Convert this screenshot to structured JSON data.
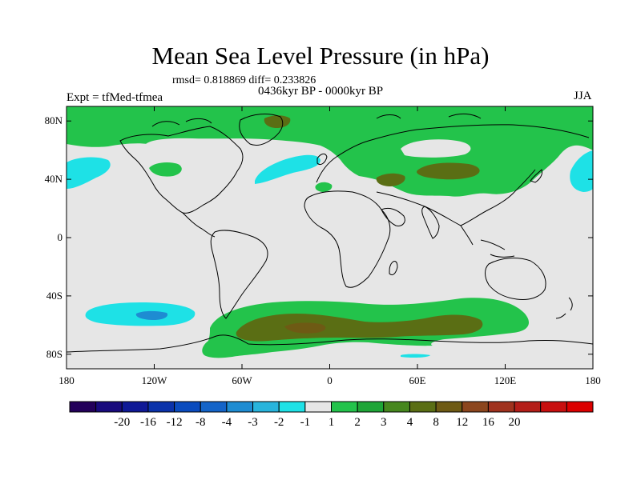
{
  "title": "Mean Sea Level Pressure (in hPa)",
  "stats": "rmsd= 0.818869 diff= 0.233826",
  "period": "0436kyr BP - 0000kyr BP",
  "experiment": "Expt = tfMed-tfmea",
  "season": "JJA",
  "map": {
    "projection": "cylindrical equidistant",
    "lon_range": [
      -180,
      180
    ],
    "lat_range": [
      -90,
      90
    ],
    "y_ticks": [
      {
        "lat": 80,
        "label": "80N"
      },
      {
        "lat": 40,
        "label": "40N"
      },
      {
        "lat": 0,
        "label": "0"
      },
      {
        "lat": -40,
        "label": "40S"
      },
      {
        "lat": -80,
        "label": "80S"
      }
    ],
    "x_ticks": [
      {
        "lon": -180,
        "label": "180"
      },
      {
        "lon": -120,
        "label": "120W"
      },
      {
        "lon": -60,
        "label": "60W"
      },
      {
        "lon": 0,
        "label": "0"
      },
      {
        "lon": 60,
        "label": "60E"
      },
      {
        "lon": 120,
        "label": "120E"
      },
      {
        "lon": 180,
        "label": "180"
      }
    ],
    "background_color": "#e6e6e6"
  },
  "colorbar": {
    "colors": [
      "#23005a",
      "#190a7d",
      "#0f1996",
      "#0a32aa",
      "#0a4bbe",
      "#1464c8",
      "#1e8cd2",
      "#28b4dc",
      "#1ee1e6",
      "#e6e6e6",
      "#23c34b",
      "#1ea537",
      "#46871e",
      "#5a6e14",
      "#6e5a14",
      "#8c461e",
      "#a0321e",
      "#b41e19",
      "#c80f0f",
      "#dc0000"
    ],
    "labels": [
      "-20",
      "-16",
      "-12",
      "-8",
      "-4",
      "-3",
      "-2",
      "-1",
      "1",
      "2",
      "3",
      "4",
      "8",
      "12",
      "16",
      "20"
    ]
  }
}
